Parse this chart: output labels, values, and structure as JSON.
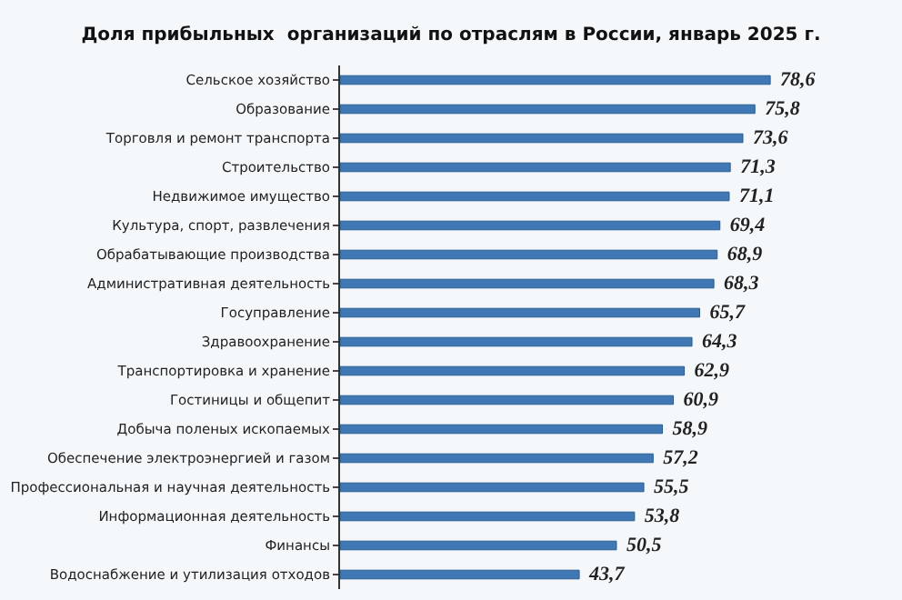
{
  "chart_data": {
    "type": "bar",
    "orientation": "horizontal",
    "title": "Доля прибыльных  организаций по отраслям в России, январь 2025 г.",
    "categories": [
      "Сельское хозяйство",
      "Образование",
      "Торговля и ремонт транспорта",
      "Строительство",
      "Недвижимое имущество",
      "Культура, спорт, развлечения",
      "Обрабатывающие производства",
      "Административная деятельность",
      "Госуправление",
      "Здравоохранение",
      "Транспортировка и хранение",
      "Гостиницы и общепит",
      "Добыча поленых ископаемых",
      "Обеспечение электроэнергией и газом",
      "Профессиональная и научная деятельность",
      "Информационная деятельность",
      "Финансы",
      "Водоснабжение и утилизация отходов"
    ],
    "values": [
      78.6,
      75.8,
      73.6,
      71.3,
      71.1,
      69.4,
      68.9,
      68.3,
      65.7,
      64.3,
      62.9,
      60.9,
      58.9,
      57.2,
      55.5,
      53.8,
      50.5,
      43.7
    ],
    "value_labels": [
      "78,6",
      "75,8",
      "73,6",
      "71,3",
      "71,1",
      "69,4",
      "68,9",
      "68,3",
      "65,7",
      "64,3",
      "62,9",
      "60,9",
      "58,9",
      "57,2",
      "55,5",
      "53,8",
      "50,5",
      "43,7"
    ],
    "color": "#3f78b4",
    "legend": false,
    "tick_labels": "y"
  }
}
